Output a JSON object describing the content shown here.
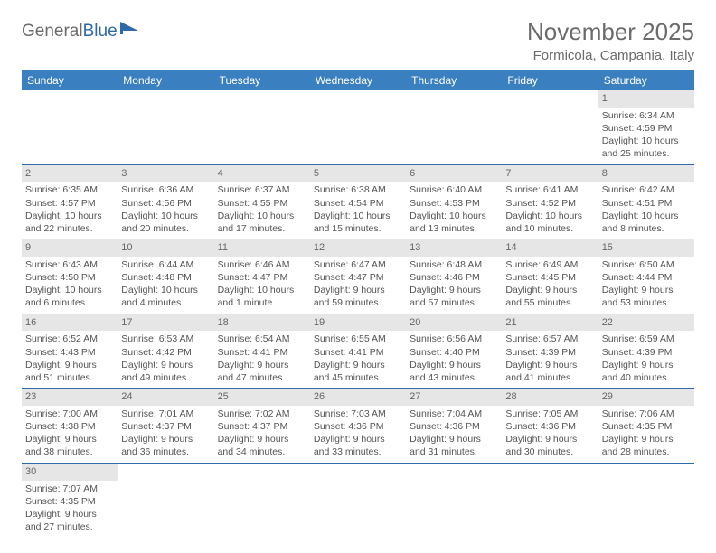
{
  "brand": {
    "part1": "General",
    "part2": "Blue"
  },
  "title": "November 2025",
  "location": "Formicola, Campania, Italy",
  "colors": {
    "header_bg": "#3a7fbf",
    "header_text": "#ffffff",
    "daynum_bg": "#e6e6e6",
    "row_border": "#2f6aa8",
    "text": "#555555",
    "title_text": "#6b6b6b"
  },
  "weekdays": [
    "Sunday",
    "Monday",
    "Tuesday",
    "Wednesday",
    "Thursday",
    "Friday",
    "Saturday"
  ],
  "first_weekday_index": 6,
  "days": [
    {
      "n": "1",
      "sunrise": "Sunrise: 6:34 AM",
      "sunset": "Sunset: 4:59 PM",
      "daylight": "Daylight: 10 hours and 25 minutes."
    },
    {
      "n": "2",
      "sunrise": "Sunrise: 6:35 AM",
      "sunset": "Sunset: 4:57 PM",
      "daylight": "Daylight: 10 hours and 22 minutes."
    },
    {
      "n": "3",
      "sunrise": "Sunrise: 6:36 AM",
      "sunset": "Sunset: 4:56 PM",
      "daylight": "Daylight: 10 hours and 20 minutes."
    },
    {
      "n": "4",
      "sunrise": "Sunrise: 6:37 AM",
      "sunset": "Sunset: 4:55 PM",
      "daylight": "Daylight: 10 hours and 17 minutes."
    },
    {
      "n": "5",
      "sunrise": "Sunrise: 6:38 AM",
      "sunset": "Sunset: 4:54 PM",
      "daylight": "Daylight: 10 hours and 15 minutes."
    },
    {
      "n": "6",
      "sunrise": "Sunrise: 6:40 AM",
      "sunset": "Sunset: 4:53 PM",
      "daylight": "Daylight: 10 hours and 13 minutes."
    },
    {
      "n": "7",
      "sunrise": "Sunrise: 6:41 AM",
      "sunset": "Sunset: 4:52 PM",
      "daylight": "Daylight: 10 hours and 10 minutes."
    },
    {
      "n": "8",
      "sunrise": "Sunrise: 6:42 AM",
      "sunset": "Sunset: 4:51 PM",
      "daylight": "Daylight: 10 hours and 8 minutes."
    },
    {
      "n": "9",
      "sunrise": "Sunrise: 6:43 AM",
      "sunset": "Sunset: 4:50 PM",
      "daylight": "Daylight: 10 hours and 6 minutes."
    },
    {
      "n": "10",
      "sunrise": "Sunrise: 6:44 AM",
      "sunset": "Sunset: 4:48 PM",
      "daylight": "Daylight: 10 hours and 4 minutes."
    },
    {
      "n": "11",
      "sunrise": "Sunrise: 6:46 AM",
      "sunset": "Sunset: 4:47 PM",
      "daylight": "Daylight: 10 hours and 1 minute."
    },
    {
      "n": "12",
      "sunrise": "Sunrise: 6:47 AM",
      "sunset": "Sunset: 4:47 PM",
      "daylight": "Daylight: 9 hours and 59 minutes."
    },
    {
      "n": "13",
      "sunrise": "Sunrise: 6:48 AM",
      "sunset": "Sunset: 4:46 PM",
      "daylight": "Daylight: 9 hours and 57 minutes."
    },
    {
      "n": "14",
      "sunrise": "Sunrise: 6:49 AM",
      "sunset": "Sunset: 4:45 PM",
      "daylight": "Daylight: 9 hours and 55 minutes."
    },
    {
      "n": "15",
      "sunrise": "Sunrise: 6:50 AM",
      "sunset": "Sunset: 4:44 PM",
      "daylight": "Daylight: 9 hours and 53 minutes."
    },
    {
      "n": "16",
      "sunrise": "Sunrise: 6:52 AM",
      "sunset": "Sunset: 4:43 PM",
      "daylight": "Daylight: 9 hours and 51 minutes."
    },
    {
      "n": "17",
      "sunrise": "Sunrise: 6:53 AM",
      "sunset": "Sunset: 4:42 PM",
      "daylight": "Daylight: 9 hours and 49 minutes."
    },
    {
      "n": "18",
      "sunrise": "Sunrise: 6:54 AM",
      "sunset": "Sunset: 4:41 PM",
      "daylight": "Daylight: 9 hours and 47 minutes."
    },
    {
      "n": "19",
      "sunrise": "Sunrise: 6:55 AM",
      "sunset": "Sunset: 4:41 PM",
      "daylight": "Daylight: 9 hours and 45 minutes."
    },
    {
      "n": "20",
      "sunrise": "Sunrise: 6:56 AM",
      "sunset": "Sunset: 4:40 PM",
      "daylight": "Daylight: 9 hours and 43 minutes."
    },
    {
      "n": "21",
      "sunrise": "Sunrise: 6:57 AM",
      "sunset": "Sunset: 4:39 PM",
      "daylight": "Daylight: 9 hours and 41 minutes."
    },
    {
      "n": "22",
      "sunrise": "Sunrise: 6:59 AM",
      "sunset": "Sunset: 4:39 PM",
      "daylight": "Daylight: 9 hours and 40 minutes."
    },
    {
      "n": "23",
      "sunrise": "Sunrise: 7:00 AM",
      "sunset": "Sunset: 4:38 PM",
      "daylight": "Daylight: 9 hours and 38 minutes."
    },
    {
      "n": "24",
      "sunrise": "Sunrise: 7:01 AM",
      "sunset": "Sunset: 4:37 PM",
      "daylight": "Daylight: 9 hours and 36 minutes."
    },
    {
      "n": "25",
      "sunrise": "Sunrise: 7:02 AM",
      "sunset": "Sunset: 4:37 PM",
      "daylight": "Daylight: 9 hours and 34 minutes."
    },
    {
      "n": "26",
      "sunrise": "Sunrise: 7:03 AM",
      "sunset": "Sunset: 4:36 PM",
      "daylight": "Daylight: 9 hours and 33 minutes."
    },
    {
      "n": "27",
      "sunrise": "Sunrise: 7:04 AM",
      "sunset": "Sunset: 4:36 PM",
      "daylight": "Daylight: 9 hours and 31 minutes."
    },
    {
      "n": "28",
      "sunrise": "Sunrise: 7:05 AM",
      "sunset": "Sunset: 4:36 PM",
      "daylight": "Daylight: 9 hours and 30 minutes."
    },
    {
      "n": "29",
      "sunrise": "Sunrise: 7:06 AM",
      "sunset": "Sunset: 4:35 PM",
      "daylight": "Daylight: 9 hours and 28 minutes."
    },
    {
      "n": "30",
      "sunrise": "Sunrise: 7:07 AM",
      "sunset": "Sunset: 4:35 PM",
      "daylight": "Daylight: 9 hours and 27 minutes."
    }
  ]
}
